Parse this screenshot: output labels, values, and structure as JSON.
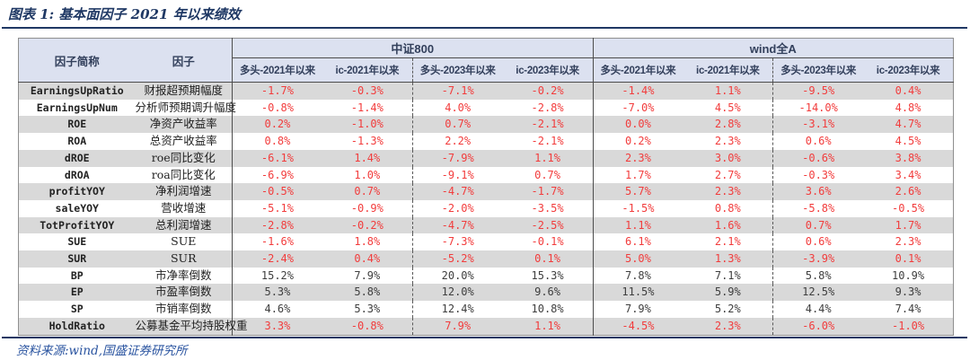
{
  "title": "图表 1: 基本面因子 2021 年以来绩效",
  "source_note": "资料来源:wind,国盛证券研究所",
  "colors": {
    "accent_navy": "#1f3864",
    "header_bg": "#dce1f0",
    "stripe_gray": "#d9d9d9",
    "value_red": "#f23c3c",
    "value_dark": "#3e3e3e",
    "source_blue": "#2a54a0"
  },
  "table": {
    "factor_abbr_header": "因子简称",
    "factor_name_header": "因子",
    "groups": [
      {
        "label": "中证800"
      },
      {
        "label": "wind全A"
      }
    ],
    "subheaders": [
      "多头-2021年以来",
      "ic-2021年以来",
      "多头-2023年以来",
      "ic-2023年以来"
    ],
    "rows": [
      {
        "abbr": "EarningsUpRatio",
        "name": "财报超预期幅度",
        "text_color": "red",
        "values": [
          "-1.7%",
          "-0.3%",
          "-7.1%",
          "-0.2%",
          "-1.4%",
          "1.1%",
          "-9.5%",
          "0.4%"
        ]
      },
      {
        "abbr": "EarningsUpNum",
        "name": "分析师预期调升幅度",
        "text_color": "red",
        "values": [
          "-0.8%",
          "-1.4%",
          "4.0%",
          "-2.8%",
          "-7.0%",
          "4.5%",
          "-14.0%",
          "4.8%"
        ]
      },
      {
        "abbr": "ROE",
        "name": "净资产收益率",
        "text_color": "red",
        "values": [
          "0.2%",
          "-1.0%",
          "0.7%",
          "-2.1%",
          "0.0%",
          "2.8%",
          "-3.1%",
          "4.7%"
        ]
      },
      {
        "abbr": "ROA",
        "name": "总资产收益率",
        "text_color": "red",
        "values": [
          "0.8%",
          "-1.3%",
          "2.2%",
          "-2.1%",
          "0.2%",
          "2.3%",
          "0.6%",
          "4.5%"
        ]
      },
      {
        "abbr": "dROE",
        "name": "roe同比变化",
        "text_color": "red",
        "values": [
          "-6.1%",
          "1.4%",
          "-7.9%",
          "1.1%",
          "2.3%",
          "3.0%",
          "-0.6%",
          "3.8%"
        ]
      },
      {
        "abbr": "dROA",
        "name": "roa同比变化",
        "text_color": "red",
        "values": [
          "-6.9%",
          "1.0%",
          "-9.1%",
          "0.7%",
          "1.7%",
          "2.7%",
          "-0.3%",
          "3.4%"
        ]
      },
      {
        "abbr": "profitYOY",
        "name": "净利润增速",
        "text_color": "red",
        "values": [
          "-0.5%",
          "0.7%",
          "-4.7%",
          "-1.7%",
          "5.7%",
          "2.3%",
          "3.6%",
          "2.6%"
        ]
      },
      {
        "abbr": "saleYOY",
        "name": "营收增速",
        "text_color": "red",
        "values": [
          "-5.1%",
          "-0.9%",
          "-2.0%",
          "-3.5%",
          "-1.5%",
          "0.8%",
          "-5.8%",
          "-0.5%"
        ]
      },
      {
        "abbr": "TotProfitYOY",
        "name": "总利润增速",
        "text_color": "red",
        "values": [
          "-2.8%",
          "-0.2%",
          "-4.7%",
          "-2.5%",
          "1.1%",
          "1.6%",
          "0.7%",
          "1.7%"
        ]
      },
      {
        "abbr": "SUE",
        "name": "SUE",
        "text_color": "red",
        "values": [
          "-1.6%",
          "1.8%",
          "-7.3%",
          "-0.1%",
          "6.1%",
          "2.1%",
          "0.6%",
          "2.3%"
        ]
      },
      {
        "abbr": "SUR",
        "name": "SUR",
        "text_color": "red",
        "values": [
          "-2.4%",
          "0.4%",
          "-5.2%",
          "0.1%",
          "5.0%",
          "1.3%",
          "-3.9%",
          "0.1%"
        ]
      },
      {
        "abbr": "BP",
        "name": "市净率倒数",
        "text_color": "dark",
        "values": [
          "15.2%",
          "7.9%",
          "20.0%",
          "15.3%",
          "7.8%",
          "7.1%",
          "5.8%",
          "10.9%"
        ]
      },
      {
        "abbr": "EP",
        "name": "市盈率倒数",
        "text_color": "dark",
        "values": [
          "5.3%",
          "5.8%",
          "12.0%",
          "9.6%",
          "11.5%",
          "5.9%",
          "12.5%",
          "9.3%"
        ]
      },
      {
        "abbr": "SP",
        "name": "市销率倒数",
        "text_color": "dark",
        "values": [
          "4.6%",
          "5.3%",
          "12.4%",
          "10.8%",
          "7.9%",
          "5.2%",
          "4.4%",
          "7.4%"
        ]
      },
      {
        "abbr": "HoldRatio",
        "name": "公募基金平均持股权重",
        "text_color": "red",
        "values": [
          "3.3%",
          "-0.8%",
          "7.9%",
          "1.1%",
          "-4.5%",
          "2.3%",
          "-6.0%",
          "-1.0%"
        ]
      }
    ]
  }
}
